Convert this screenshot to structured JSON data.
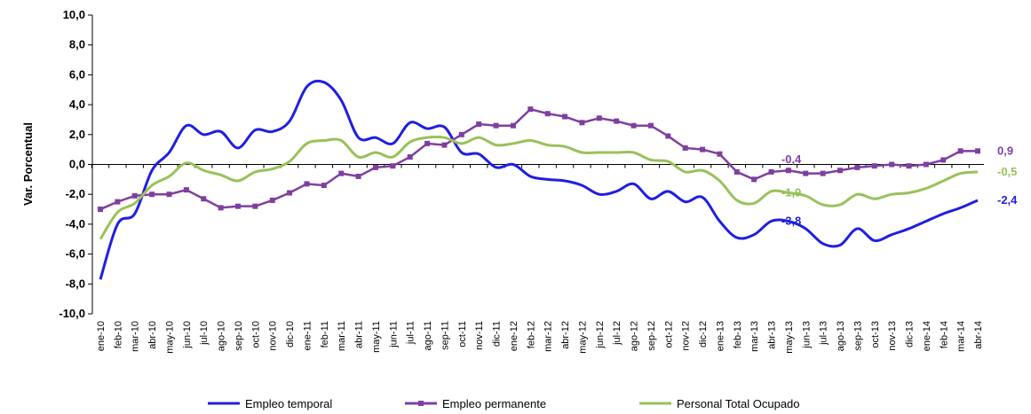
{
  "chart_data": {
    "type": "line",
    "y_label": "Var. Porcentual",
    "categories": [
      "ene-10",
      "feb-10",
      "mar-10",
      "abr-10",
      "may-10",
      "jun-10",
      "jul-10",
      "ago-10",
      "sep-10",
      "oct-10",
      "nov-10",
      "dic-10",
      "ene-11",
      "feb-11",
      "mar-11",
      "abr-11",
      "may-11",
      "jun-11",
      "jul-11",
      "ago-11",
      "sep-11",
      "oct-11",
      "nov-11",
      "dic-11",
      "ene-12",
      "feb-12",
      "mar-12",
      "abr-12",
      "may-12",
      "jun-12",
      "jul-12",
      "ago-12",
      "sep-12",
      "oct-12",
      "nov-12",
      "dic-12",
      "ene-13",
      "feb-13",
      "mar-13",
      "abr-13",
      "may-13",
      "jun-13",
      "jul-13",
      "ago-13",
      "sep-13",
      "oct-13",
      "nov-13",
      "dic-13",
      "ene-14",
      "feb-14",
      "mar-14",
      "abr-14"
    ],
    "series": [
      {
        "name": "Empleo temporal",
        "color": "#1f1fe0",
        "marker": false,
        "values": [
          -7.7,
          -4.0,
          -3.3,
          -0.4,
          0.8,
          2.6,
          2.0,
          2.2,
          1.1,
          2.3,
          2.2,
          2.9,
          5.2,
          5.5,
          4.3,
          1.8,
          1.8,
          1.4,
          2.8,
          2.4,
          2.5,
          0.8,
          0.7,
          -0.2,
          0.0,
          -0.8,
          -1.0,
          -1.1,
          -1.4,
          -2.0,
          -1.8,
          -1.3,
          -2.3,
          -1.8,
          -2.5,
          -2.2,
          -3.8,
          -4.9,
          -4.7,
          -3.8,
          -3.8,
          -4.3,
          -5.3,
          -5.4,
          -4.3,
          -5.1,
          -4.7,
          -4.3,
          -3.8,
          -3.3,
          -2.9,
          -2.4
        ],
        "value_labels": [
          null,
          null,
          null,
          null,
          null,
          null,
          null,
          null,
          null,
          null,
          null,
          null,
          null,
          null,
          null,
          null,
          null,
          null,
          null,
          null,
          null,
          null,
          null,
          null,
          null,
          null,
          null,
          null,
          null,
          null,
          null,
          null,
          null,
          null,
          null,
          null,
          null,
          null,
          null,
          null,
          "-3,8",
          null,
          null,
          null,
          null,
          null,
          null,
          null,
          null,
          null,
          null,
          "-2,4"
        ]
      },
      {
        "name": "Empleo permanente",
        "color": "#7f3f9f",
        "marker": true,
        "values": [
          -3.0,
          -2.5,
          -2.1,
          -2.0,
          -2.0,
          -1.7,
          -2.3,
          -2.9,
          -2.8,
          -2.8,
          -2.4,
          -1.9,
          -1.3,
          -1.4,
          -0.6,
          -0.8,
          -0.2,
          -0.1,
          0.5,
          1.4,
          1.3,
          2.0,
          2.7,
          2.6,
          2.6,
          3.7,
          3.4,
          3.2,
          2.8,
          3.1,
          2.9,
          2.6,
          2.6,
          1.9,
          1.1,
          1.0,
          0.7,
          -0.5,
          -1.0,
          -0.5,
          -0.4,
          -0.6,
          -0.6,
          -0.4,
          -0.2,
          -0.1,
          0.0,
          -0.1,
          0.0,
          0.3,
          0.9,
          0.9
        ],
        "value_labels": [
          null,
          null,
          null,
          null,
          null,
          null,
          null,
          null,
          null,
          null,
          null,
          null,
          null,
          null,
          null,
          null,
          null,
          null,
          null,
          null,
          null,
          null,
          null,
          null,
          null,
          null,
          null,
          null,
          null,
          null,
          null,
          null,
          null,
          null,
          null,
          null,
          null,
          null,
          null,
          null,
          "-0,4",
          null,
          null,
          null,
          null,
          null,
          null,
          null,
          null,
          null,
          null,
          "0,9"
        ]
      },
      {
        "name": "Personal Total Ocupado",
        "color": "#99c15a",
        "marker": false,
        "values": [
          -5.0,
          -3.2,
          -2.6,
          -1.4,
          -0.8,
          0.1,
          -0.4,
          -0.7,
          -1.1,
          -0.5,
          -0.3,
          0.2,
          1.4,
          1.6,
          1.6,
          0.5,
          0.8,
          0.5,
          1.5,
          1.8,
          1.8,
          1.4,
          1.8,
          1.3,
          1.4,
          1.6,
          1.3,
          1.2,
          0.8,
          0.8,
          0.8,
          0.8,
          0.3,
          0.2,
          -0.5,
          -0.4,
          -1.1,
          -2.4,
          -2.6,
          -1.8,
          -1.9,
          -2.1,
          -2.7,
          -2.7,
          -2.0,
          -2.3,
          -2.0,
          -1.9,
          -1.6,
          -1.1,
          -0.6,
          -0.5
        ],
        "value_labels": [
          null,
          null,
          null,
          null,
          null,
          null,
          null,
          null,
          null,
          null,
          null,
          null,
          null,
          null,
          null,
          null,
          null,
          null,
          null,
          null,
          null,
          null,
          null,
          null,
          null,
          null,
          null,
          null,
          null,
          null,
          null,
          null,
          null,
          null,
          null,
          null,
          null,
          null,
          null,
          null,
          "-1,9",
          null,
          null,
          null,
          null,
          null,
          null,
          null,
          null,
          null,
          null,
          "-0,5"
        ]
      }
    ],
    "ylim": [
      -10,
      10
    ],
    "yticks": [
      {
        "value": -10,
        "label": "-10,0"
      },
      {
        "value": -8,
        "label": "-8,0"
      },
      {
        "value": -6,
        "label": "-6,0"
      },
      {
        "value": -4,
        "label": "-4,0"
      },
      {
        "value": -2,
        "label": "-2,0"
      },
      {
        "value": 0,
        "label": "0,0"
      },
      {
        "value": 2,
        "label": "2,0"
      },
      {
        "value": 4,
        "label": "4,0"
      },
      {
        "value": 6,
        "label": "6,0"
      },
      {
        "value": 8,
        "label": "8,0"
      },
      {
        "value": 10,
        "label": "10,0"
      }
    ],
    "grid": false,
    "legend": "bottom"
  }
}
